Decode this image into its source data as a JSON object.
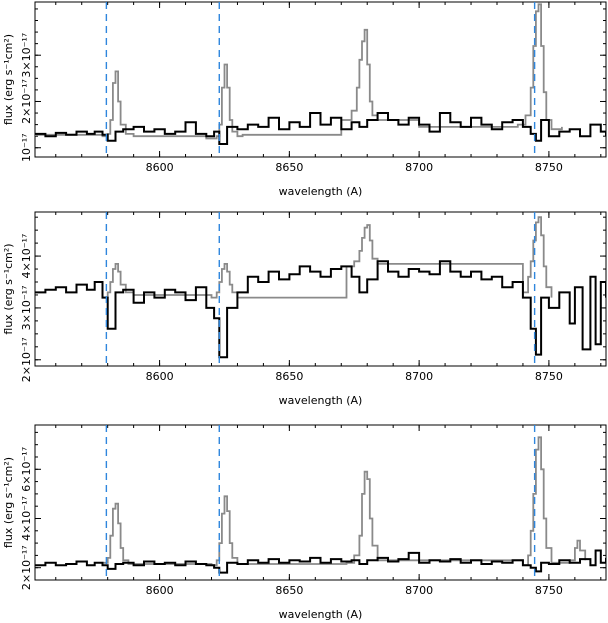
{
  "chart_data": [
    {
      "type": "line",
      "xlabel": "wavelength (A)",
      "ylabel": "flux (erg s⁻¹cm²)",
      "xlim": [
        8552,
        8772
      ],
      "ylim": [
        8e-18,
        4.15e-17
      ],
      "x_ticks": [
        8600,
        8650,
        8700,
        8750
      ],
      "x_tick_labels": [
        "8600",
        "8650",
        "8700",
        "8750"
      ],
      "y_ticks": [
        1e-17,
        2e-17,
        3e-17
      ],
      "y_tick_labels": [
        "10⁻¹⁷",
        "2×10⁻¹⁷",
        "3×10⁻¹⁷"
      ],
      "reference_lines_x": [
        8579.5,
        8623,
        8744.5
      ],
      "series": [
        {
          "style": "gray",
          "color": "#8a8a8a",
          "x": [
            8552,
            8578,
            8580,
            8581,
            8582,
            8583,
            8584,
            8585,
            8587,
            8590,
            8618,
            8622,
            8623,
            8624,
            8625,
            8626,
            8627,
            8628,
            8630,
            8632,
            8670,
            8674,
            8676,
            8677,
            8678,
            8679,
            8680,
            8681,
            8682,
            8684,
            8700,
            8738,
            8741,
            8743,
            8744,
            8745,
            8746,
            8747,
            8748,
            8749,
            8751,
            8755
          ],
          "y": [
            1.28e-17,
            1.25e-17,
            1.3e-17,
            1.6e-17,
            2.4e-17,
            2.65e-17,
            2e-17,
            1.5e-17,
            1.3e-17,
            1.25e-17,
            1.2e-17,
            1.25e-17,
            1.5e-17,
            2.3e-17,
            2.8e-17,
            2.3e-17,
            1.6e-17,
            1.35e-17,
            1.25e-17,
            1.28e-17,
            1.6e-17,
            1.8e-17,
            2.3e-17,
            2.9e-17,
            3.3e-17,
            3.55e-17,
            2.8e-17,
            2e-17,
            1.7e-17,
            1.6e-17,
            1.45e-17,
            1.5e-17,
            1.7e-17,
            2.3e-17,
            3.2e-17,
            3.95e-17,
            4.1e-17,
            3.2e-17,
            2.2e-17,
            1.6e-17,
            1.4e-17,
            1.45e-17
          ]
        },
        {
          "style": "black",
          "color": "#000000",
          "x": [
            8552,
            8556,
            8560,
            8564,
            8568,
            8572,
            8575,
            8578,
            8580,
            8583,
            8586,
            8590,
            8594,
            8598,
            8602,
            8606,
            8610,
            8614,
            8618,
            8621,
            8623,
            8626,
            8630,
            8634,
            8638,
            8642,
            8646,
            8650,
            8654,
            8658,
            8662,
            8666,
            8670,
            8674,
            8677,
            8680,
            8684,
            8688,
            8692,
            8696,
            8700,
            8704,
            8708,
            8712,
            8716,
            8720,
            8724,
            8728,
            8732,
            8736,
            8740,
            8743,
            8745,
            8747,
            8750,
            8754,
            8758,
            8762,
            8766,
            8770,
            8772
          ],
          "y": [
            1.3e-17,
            1.25e-17,
            1.32e-17,
            1.28e-17,
            1.35e-17,
            1.3e-17,
            1.35e-17,
            1.28e-17,
            1.15e-17,
            1.35e-17,
            1.4e-17,
            1.45e-17,
            1.35e-17,
            1.4e-17,
            1.3e-17,
            1.35e-17,
            1.55e-17,
            1.3e-17,
            1.25e-17,
            1.35e-17,
            1.08e-17,
            1.45e-17,
            1.4e-17,
            1.5e-17,
            1.45e-17,
            1.65e-17,
            1.4e-17,
            1.55e-17,
            1.45e-17,
            1.75e-17,
            1.5e-17,
            1.65e-17,
            1.4e-17,
            1.55e-17,
            1.45e-17,
            1.6e-17,
            1.75e-17,
            1.6e-17,
            1.5e-17,
            1.65e-17,
            1.5e-17,
            1.35e-17,
            1.75e-17,
            1.55e-17,
            1.45e-17,
            1.65e-17,
            1.5e-17,
            1.4e-17,
            1.55e-17,
            1.6e-17,
            1.45e-17,
            1.3e-17,
            1.15e-17,
            1.6e-17,
            1.25e-17,
            1.35e-17,
            1.4e-17,
            1.25e-17,
            1.5e-17,
            1.35e-17,
            1.25e-17
          ]
        }
      ]
    },
    {
      "type": "line",
      "xlabel": "wavelength (A)",
      "ylabel": "flux (erg s⁻¹cm²)",
      "xlim": [
        8552,
        8772
      ],
      "ylim": [
        1.88e-17,
        4.85e-17
      ],
      "x_ticks": [
        8600,
        8650,
        8700,
        8750
      ],
      "x_tick_labels": [
        "8600",
        "8650",
        "8700",
        "8750"
      ],
      "y_ticks": [
        2e-17,
        3e-17,
        4e-17
      ],
      "y_tick_labels": [
        "2×10⁻¹⁷",
        "3×10⁻¹⁷",
        "4×10⁻¹⁷"
      ],
      "reference_lines_x": [
        8579.5,
        8623,
        8744.5
      ],
      "series": [
        {
          "style": "gray",
          "color": "#8a8a8a",
          "x": [
            8578,
            8580,
            8581,
            8582,
            8583,
            8584,
            8585,
            8587,
            8590,
            8620,
            8622,
            8623,
            8624,
            8625,
            8626,
            8627,
            8628,
            8630,
            8672,
            8675,
            8677,
            8678,
            8679,
            8680,
            8681,
            8682,
            8684,
            8740,
            8742,
            8743,
            8744,
            8745,
            8746,
            8747,
            8748,
            8749,
            8751
          ],
          "y": [
            3.2e-17,
            3.3e-17,
            3.5e-17,
            3.75e-17,
            3.85e-17,
            3.7e-17,
            3.45e-17,
            3.3e-17,
            3.25e-17,
            3.2e-17,
            3.3e-17,
            3.5e-17,
            3.75e-17,
            3.85e-17,
            3.7e-17,
            3.45e-17,
            3.3e-17,
            3.2e-17,
            3.8e-17,
            3.9e-17,
            4.1e-17,
            4.35e-17,
            4.55e-17,
            4.6e-17,
            4.3e-17,
            3.95e-17,
            3.85e-17,
            3.3e-17,
            3.6e-17,
            3.9e-17,
            4.3e-17,
            4.65e-17,
            4.75e-17,
            4.4e-17,
            3.8e-17,
            3.4e-17,
            3.2e-17
          ]
        },
        {
          "style": "black",
          "color": "#000000",
          "x": [
            8552,
            8556,
            8560,
            8564,
            8568,
            8572,
            8575,
            8578,
            8580,
            8583,
            8586,
            8590,
            8594,
            8598,
            8602,
            8606,
            8610,
            8614,
            8618,
            8621,
            8623,
            8626,
            8630,
            8634,
            8638,
            8642,
            8646,
            8650,
            8654,
            8658,
            8662,
            8666,
            8670,
            8674,
            8677,
            8680,
            8684,
            8688,
            8692,
            8696,
            8700,
            8704,
            8708,
            8712,
            8716,
            8720,
            8724,
            8728,
            8732,
            8736,
            8740,
            8743,
            8745,
            8747,
            8750,
            8754,
            8758,
            8760,
            8763,
            8766,
            8768,
            8770,
            8772
          ],
          "y": [
            3.3e-17,
            3.35e-17,
            3.4e-17,
            3.3e-17,
            3.45e-17,
            3.35e-17,
            3.5e-17,
            3.2e-17,
            2.6e-17,
            3.3e-17,
            3.35e-17,
            3.1e-17,
            3.3e-17,
            3.2e-17,
            3.35e-17,
            3.3e-17,
            3.15e-17,
            3.4e-17,
            3e-17,
            2.8e-17,
            2.05e-17,
            3e-17,
            3.3e-17,
            3.6e-17,
            3.5e-17,
            3.7e-17,
            3.55e-17,
            3.65e-17,
            3.8e-17,
            3.7e-17,
            3.6e-17,
            3.75e-17,
            3.8e-17,
            3.6e-17,
            3.3e-17,
            3.55e-17,
            3.9e-17,
            3.7e-17,
            3.6e-17,
            3.75e-17,
            3.7e-17,
            3.65e-17,
            3.9e-17,
            3.7e-17,
            3.6e-17,
            3.7e-17,
            3.55e-17,
            3.6e-17,
            3.4e-17,
            3.5e-17,
            3.2e-17,
            2.6e-17,
            2.1e-17,
            3.2e-17,
            3e-17,
            3.3e-17,
            2.7e-17,
            3.4e-17,
            2.2e-17,
            3.6e-17,
            2.3e-17,
            3.5e-17,
            3.2e-17
          ]
        }
      ]
    },
    {
      "type": "line",
      "xlabel": "wavelength (A)",
      "ylabel": "flux (erg s⁻¹cm²)",
      "xlim": [
        8552,
        8772
      ],
      "ylim": [
        1.5e-17,
        7.8e-17
      ],
      "x_ticks": [
        8600,
        8650,
        8700,
        8750
      ],
      "x_tick_labels": [
        "8600",
        "8650",
        "8700",
        "8750"
      ],
      "y_ticks": [
        2e-17,
        4e-17,
        6e-17
      ],
      "y_tick_labels": [
        "2×10⁻¹⁷",
        "4×10⁻¹⁷",
        "6×10⁻¹⁷"
      ],
      "reference_lines_x": [
        8579.5,
        8623,
        8744.5
      ],
      "series": [
        {
          "style": "gray",
          "color": "#8a8a8a",
          "x": [
            8578,
            8580,
            8581,
            8582,
            8583,
            8584,
            8585,
            8586,
            8588,
            8620,
            8622,
            8623,
            8624,
            8625,
            8626,
            8627,
            8628,
            8630,
            8672,
            8675,
            8677,
            8678,
            8679,
            8680,
            8681,
            8682,
            8684,
            8740,
            8742,
            8743,
            8744,
            8745,
            8746,
            8747,
            8748,
            8749,
            8751,
            8758,
            8760,
            8761,
            8762,
            8764
          ],
          "y": [
            2.2e-17,
            2.4e-17,
            3.3e-17,
            4.4e-17,
            4.6e-17,
            3.8e-17,
            2.8e-17,
            2.3e-17,
            2.15e-17,
            2.1e-17,
            2.3e-17,
            3e-17,
            4.2e-17,
            4.9e-17,
            4.3e-17,
            3e-17,
            2.4e-17,
            2.15e-17,
            2.2e-17,
            2.5e-17,
            3.3e-17,
            5e-17,
            5.9e-17,
            5.6e-17,
            4e-17,
            2.9e-17,
            2.3e-17,
            2.1e-17,
            2.5e-17,
            3.5e-17,
            5e-17,
            6.8e-17,
            7.3e-17,
            6e-17,
            4e-17,
            2.8e-17,
            2.2e-17,
            2.3e-17,
            2.8e-17,
            3.1e-17,
            2.7e-17,
            2.3e-17
          ]
        },
        {
          "style": "black",
          "color": "#000000",
          "x": [
            8552,
            8556,
            8560,
            8564,
            8568,
            8572,
            8575,
            8578,
            8580,
            8583,
            8586,
            8590,
            8594,
            8598,
            8602,
            8606,
            8610,
            8614,
            8618,
            8621,
            8623,
            8626,
            8630,
            8634,
            8638,
            8642,
            8646,
            8650,
            8654,
            8658,
            8662,
            8666,
            8670,
            8674,
            8677,
            8680,
            8684,
            8688,
            8692,
            8696,
            8700,
            8704,
            8708,
            8712,
            8716,
            8720,
            8724,
            8728,
            8732,
            8736,
            8740,
            8743,
            8745,
            8747,
            8750,
            8754,
            8758,
            8762,
            8766,
            8768,
            8770,
            8772
          ],
          "y": [
            2.1e-17,
            2.2e-17,
            2.1e-17,
            2.15e-17,
            2.25e-17,
            2.1e-17,
            2.2e-17,
            2.1e-17,
            1.95e-17,
            2.15e-17,
            2.2e-17,
            2.1e-17,
            2.25e-17,
            2.15e-17,
            2.2e-17,
            2.1e-17,
            2.25e-17,
            2.15e-17,
            2.1e-17,
            2e-17,
            1.8e-17,
            2.2e-17,
            2.15e-17,
            2.3e-17,
            2.2e-17,
            2.35e-17,
            2.2e-17,
            2.3e-17,
            2.25e-17,
            2.4e-17,
            2.2e-17,
            2.35e-17,
            2.25e-17,
            2.3e-17,
            2.15e-17,
            2.3e-17,
            2.4e-17,
            2.25e-17,
            2.35e-17,
            2.6e-17,
            2.2e-17,
            2.3e-17,
            2.25e-17,
            2.35e-17,
            2.2e-17,
            2.3e-17,
            2.15e-17,
            2.25e-17,
            2.2e-17,
            2.3e-17,
            2.1e-17,
            2e-17,
            1.85e-17,
            2.2e-17,
            2.15e-17,
            2.3e-17,
            2.2e-17,
            2.35e-17,
            2.1e-17,
            2.7e-17,
            2.2e-17,
            2.4e-17
          ]
        }
      ]
    }
  ]
}
